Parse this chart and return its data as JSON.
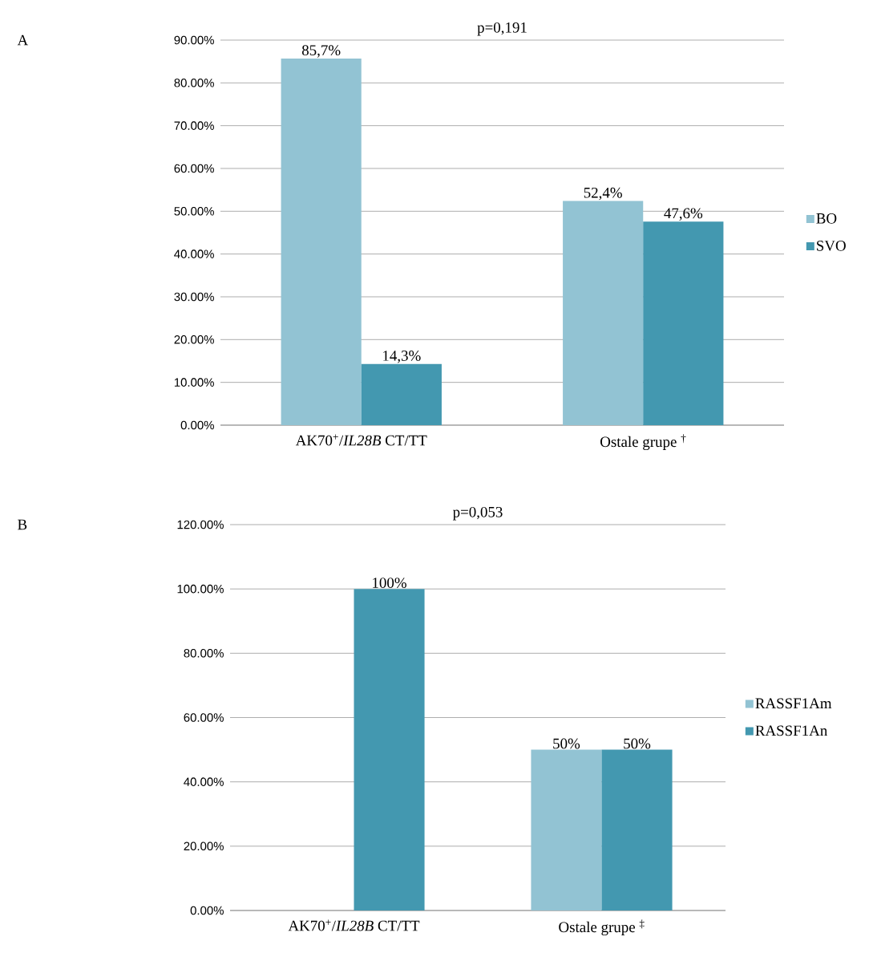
{
  "chart_data": [
    {
      "type": "bar",
      "title": "p=0,191",
      "categories": [
        "AK70$^{+}$/*IL28B* CT/TT",
        "Ostale grupe $^{†}$"
      ],
      "series": [
        {
          "name": "BO",
          "color": "#92c3d3",
          "values": [
            85.7,
            52.4
          ],
          "value_labels": [
            "85,7%",
            "52,4%"
          ]
        },
        {
          "name": "SVO",
          "color": "#4398b0",
          "values": [
            14.3,
            47.6
          ],
          "value_labels": [
            "14,3%",
            "47,6%"
          ]
        }
      ],
      "ylim": [
        0,
        90
      ],
      "yticks": [
        {
          "value": 0,
          "label": "0.00%"
        },
        {
          "value": 10,
          "label": "10.00%"
        },
        {
          "value": 20,
          "label": "20.00%"
        },
        {
          "value": 30,
          "label": "30.00%"
        },
        {
          "value": 40,
          "label": "40.00%"
        },
        {
          "value": 50,
          "label": "50.00%"
        },
        {
          "value": 60,
          "label": "60.00%"
        },
        {
          "value": 70,
          "label": "70.00%"
        },
        {
          "value": 80,
          "label": "80.00%"
        },
        {
          "value": 90,
          "label": "90.00%"
        }
      ],
      "grid": "y",
      "legend": "right",
      "annotations": [
        "A"
      ]
    },
    {
      "type": "bar",
      "title": "p=0,053",
      "categories": [
        "AK70$^{+}$/*IL28B* CT/TT",
        "Ostale grupe $^{‡}$"
      ],
      "series": [
        {
          "name": "RASSF1Am",
          "color": "#92c3d3",
          "values": [
            0,
            50
          ],
          "value_labels": [
            null,
            "50%"
          ]
        },
        {
          "name": "RASSF1An",
          "color": "#4398b0",
          "values": [
            100,
            50
          ],
          "value_labels": [
            "100%",
            "50%"
          ]
        }
      ],
      "ylim": [
        0,
        120
      ],
      "yticks": [
        {
          "value": 0,
          "label": "0.00%"
        },
        {
          "value": 20,
          "label": "20.00%"
        },
        {
          "value": 40,
          "label": "40.00%"
        },
        {
          "value": 60,
          "label": "60.00%"
        },
        {
          "value": 80,
          "label": "80.00%"
        },
        {
          "value": 100,
          "label": "100.00%"
        },
        {
          "value": 120,
          "label": "120.00%"
        }
      ],
      "grid": "y",
      "legend": "right",
      "annotations": [
        "B"
      ]
    }
  ]
}
